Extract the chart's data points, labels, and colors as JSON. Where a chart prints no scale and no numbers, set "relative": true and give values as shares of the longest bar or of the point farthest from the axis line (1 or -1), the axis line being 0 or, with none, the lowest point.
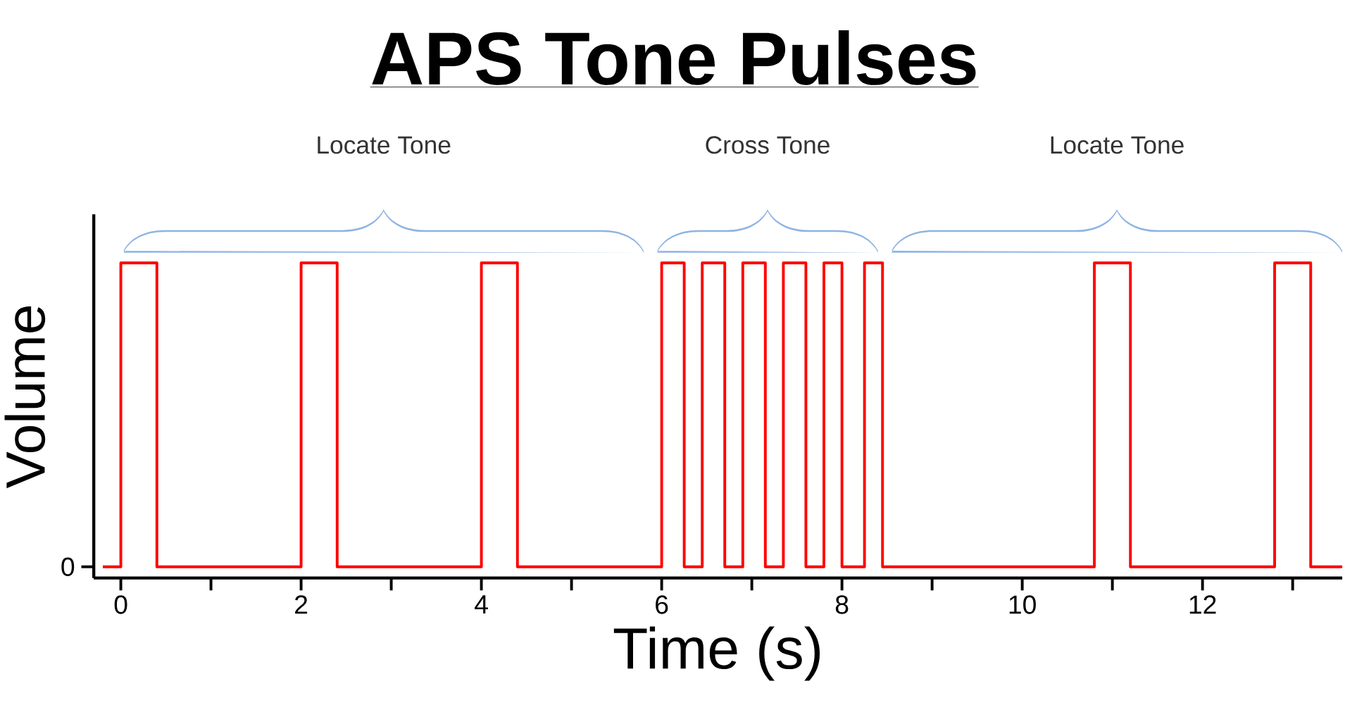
{
  "chart_data": {
    "type": "step",
    "title": "APS Tone Pulses",
    "xlabel": "Time (s)",
    "ylabel": "Volume",
    "relative": true,
    "color": "#ff0000",
    "x": [
      -0.2,
      0,
      0.4,
      2,
      2.4,
      4,
      4.4,
      6,
      6.25,
      6.45,
      6.7,
      6.9,
      7.15,
      7.35,
      7.6,
      7.8,
      8.0,
      8.25,
      8.45,
      10.8,
      11.2,
      12.8,
      13.2,
      13.55
    ],
    "values": [
      0,
      1,
      0,
      1,
      0,
      1,
      0,
      1,
      0,
      1,
      0,
      1,
      0,
      1,
      0,
      1,
      0,
      1,
      0,
      1,
      0,
      1,
      0,
      0
    ],
    "xlim": [
      -0.3,
      13.55
    ],
    "xticks": [
      0,
      {
        "value": 1,
        "label": null
      },
      2,
      {
        "value": 3,
        "label": null
      },
      4,
      {
        "value": 5,
        "label": null
      },
      6,
      {
        "value": 7,
        "label": null
      },
      8,
      {
        "value": 9,
        "label": null
      },
      10,
      {
        "value": 11,
        "label": null
      },
      12,
      {
        "value": 13,
        "label": null
      }
    ],
    "annotations": [
      "Locate Tone",
      "Cross Tone",
      "Locate Tone",
      "0"
    ],
    "grid": false
  }
}
